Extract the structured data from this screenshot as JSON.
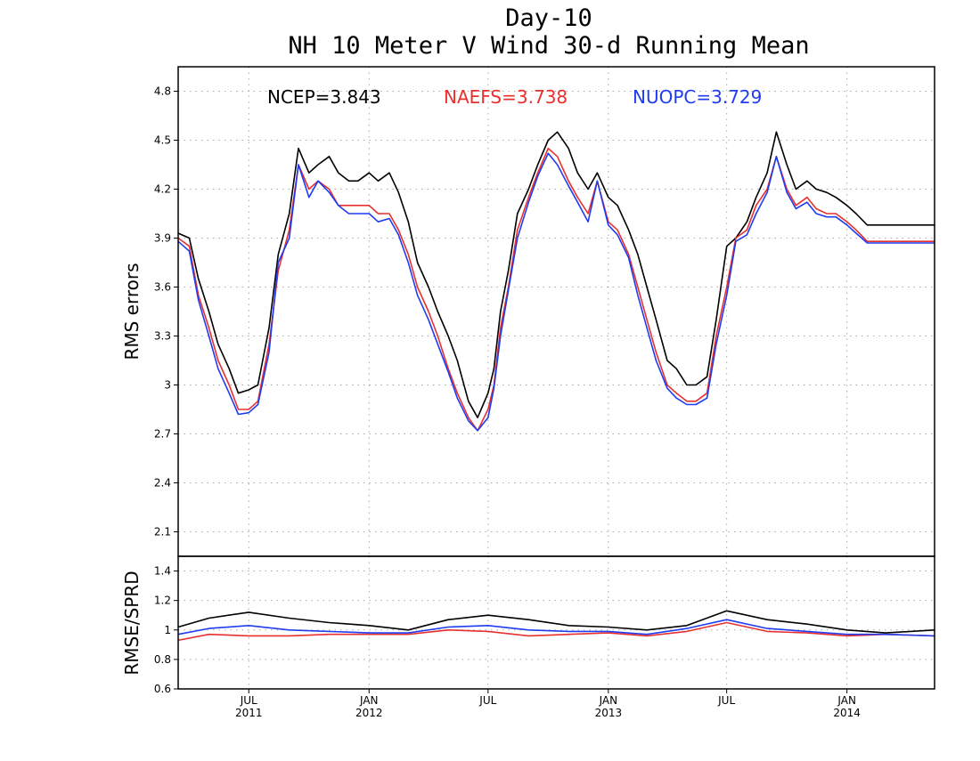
{
  "chart_data": [
    {
      "type": "line",
      "title": "Day-10",
      "subtitle": "NH 10 Meter V Wind 30-d Running Mean",
      "xlabel": "",
      "ylabel": "RMS errors",
      "x_range": [
        "2011-03-15",
        "2014-05-15"
      ],
      "ylim": [
        1.95,
        4.95
      ],
      "yticks": [
        "2.1",
        "2.4",
        "2.7",
        "3",
        "3.3",
        "3.6",
        "3.9",
        "4.2",
        "4.5",
        "4.8"
      ],
      "grid": true,
      "legend": "stats printed across top of plot",
      "stats": [
        {
          "label": "NCEP=3.843",
          "color": "#000000"
        },
        {
          "label": "NAEFS=3.738",
          "color": "#e8302e"
        },
        {
          "label": "NUOPC=3.729",
          "color": "#1f3cf0"
        }
      ],
      "series": [
        {
          "color": "#000000",
          "x": [
            "2011-03-15",
            "2011-04-01",
            "2011-04-15",
            "2011-05-01",
            "2011-05-15",
            "2011-06-01",
            "2011-06-15",
            "2011-07-01",
            "2011-07-15",
            "2011-08-01",
            "2011-08-15",
            "2011-09-01",
            "2011-09-15",
            "2011-10-01",
            "2011-10-15",
            "2011-11-01",
            "2011-11-15",
            "2011-12-01",
            "2011-12-15",
            "2012-01-01",
            "2012-01-15",
            "2012-02-01",
            "2012-02-15",
            "2012-03-01",
            "2012-03-15",
            "2012-04-01",
            "2012-04-15",
            "2012-05-01",
            "2012-05-15",
            "2012-06-01",
            "2012-06-15",
            "2012-07-01",
            "2012-07-10",
            "2012-07-20",
            "2012-08-01",
            "2012-08-15",
            "2012-09-01",
            "2012-09-15",
            "2012-10-01",
            "2012-10-15",
            "2012-11-01",
            "2012-11-15",
            "2012-12-01",
            "2012-12-15",
            "2013-01-01",
            "2013-01-15",
            "2013-02-01",
            "2013-02-15",
            "2013-03-01",
            "2013-03-15",
            "2013-04-01",
            "2013-04-15",
            "2013-05-01",
            "2013-05-15",
            "2013-06-01",
            "2013-06-15",
            "2013-07-01",
            "2013-07-15",
            "2013-08-01",
            "2013-08-15",
            "2013-09-01",
            "2013-09-15",
            "2013-10-01",
            "2013-10-15",
            "2013-11-01",
            "2013-11-15",
            "2013-12-01",
            "2013-12-15",
            "2014-01-01",
            "2014-01-15",
            "2014-02-01",
            "2014-02-15",
            "2014-03-01",
            "2014-03-15",
            "2014-04-01",
            "2014-04-15",
            "2014-05-01",
            "2014-05-15"
          ],
          "values": [
            3.93,
            3.9,
            3.65,
            3.45,
            3.25,
            3.1,
            2.95,
            2.97,
            3.0,
            3.35,
            3.8,
            4.05,
            4.45,
            4.3,
            4.35,
            4.4,
            4.3,
            4.25,
            4.25,
            4.3,
            4.25,
            4.3,
            4.18,
            4.0,
            3.75,
            3.6,
            3.45,
            3.3,
            3.15,
            2.9,
            2.8,
            2.95,
            3.1,
            3.45,
            3.7,
            4.05,
            4.2,
            4.35,
            4.5,
            4.55,
            4.45,
            4.3,
            4.2,
            4.3,
            4.15,
            4.1,
            3.95,
            3.8,
            3.6,
            3.4,
            3.15,
            3.1,
            3.0,
            3.0,
            3.05,
            3.4,
            3.85,
            3.9,
            4.0,
            4.15,
            4.3,
            4.55,
            4.35,
            4.2,
            4.25,
            4.2,
            4.18,
            4.15,
            4.1,
            4.05,
            3.98,
            3.98,
            3.98,
            3.98,
            3.98,
            3.98,
            3.98,
            3.98
          ]
        },
        {
          "color": "#e8302e",
          "x": [
            "2011-03-15",
            "2011-04-01",
            "2011-04-15",
            "2011-05-01",
            "2011-05-15",
            "2011-06-01",
            "2011-06-15",
            "2011-07-01",
            "2011-07-15",
            "2011-08-01",
            "2011-08-15",
            "2011-09-01",
            "2011-09-15",
            "2011-10-01",
            "2011-10-15",
            "2011-11-01",
            "2011-11-15",
            "2011-12-01",
            "2011-12-15",
            "2012-01-01",
            "2012-01-15",
            "2012-02-01",
            "2012-02-15",
            "2012-03-01",
            "2012-03-15",
            "2012-04-01",
            "2012-04-15",
            "2012-05-01",
            "2012-05-15",
            "2012-06-01",
            "2012-06-15",
            "2012-07-01",
            "2012-07-10",
            "2012-07-20",
            "2012-08-01",
            "2012-08-15",
            "2012-09-01",
            "2012-09-15",
            "2012-10-01",
            "2012-10-15",
            "2012-11-01",
            "2012-11-15",
            "2012-12-01",
            "2012-12-15",
            "2013-01-01",
            "2013-01-15",
            "2013-02-01",
            "2013-02-15",
            "2013-03-01",
            "2013-03-15",
            "2013-04-01",
            "2013-04-15",
            "2013-05-01",
            "2013-05-15",
            "2013-06-01",
            "2013-06-15",
            "2013-07-01",
            "2013-07-15",
            "2013-08-01",
            "2013-08-15",
            "2013-09-01",
            "2013-09-15",
            "2013-10-01",
            "2013-10-15",
            "2013-11-01",
            "2013-11-15",
            "2013-12-01",
            "2013-12-15",
            "2014-01-01",
            "2014-01-15",
            "2014-02-01",
            "2014-02-15",
            "2014-03-01",
            "2014-03-15",
            "2014-04-01",
            "2014-04-15",
            "2014-05-01",
            "2014-05-15"
          ],
          "values": [
            3.9,
            3.85,
            3.55,
            3.35,
            3.15,
            3.0,
            2.85,
            2.85,
            2.9,
            3.25,
            3.7,
            3.95,
            4.35,
            4.2,
            4.25,
            4.2,
            4.1,
            4.1,
            4.1,
            4.1,
            4.05,
            4.05,
            3.95,
            3.8,
            3.6,
            3.45,
            3.3,
            3.1,
            2.95,
            2.8,
            2.72,
            2.85,
            3.0,
            3.35,
            3.6,
            3.95,
            4.15,
            4.3,
            4.45,
            4.4,
            4.25,
            4.15,
            4.05,
            4.25,
            4.0,
            3.95,
            3.8,
            3.6,
            3.4,
            3.2,
            3.0,
            2.95,
            2.9,
            2.9,
            2.95,
            3.3,
            3.6,
            3.9,
            3.95,
            4.1,
            4.2,
            4.4,
            4.2,
            4.1,
            4.15,
            4.08,
            4.05,
            4.05,
            4.0,
            3.95,
            3.88,
            3.88,
            3.88,
            3.88,
            3.88,
            3.88,
            3.88,
            3.88
          ]
        },
        {
          "color": "#1f3cf0",
          "x": [
            "2011-03-15",
            "2011-04-01",
            "2011-04-15",
            "2011-05-01",
            "2011-05-15",
            "2011-06-01",
            "2011-06-15",
            "2011-07-01",
            "2011-07-15",
            "2011-08-01",
            "2011-08-15",
            "2011-09-01",
            "2011-09-15",
            "2011-10-01",
            "2011-10-15",
            "2011-11-01",
            "2011-11-15",
            "2011-12-01",
            "2011-12-15",
            "2012-01-01",
            "2012-01-15",
            "2012-02-01",
            "2012-02-15",
            "2012-03-01",
            "2012-03-15",
            "2012-04-01",
            "2012-04-15",
            "2012-05-01",
            "2012-05-15",
            "2012-06-01",
            "2012-06-15",
            "2012-07-01",
            "2012-07-10",
            "2012-07-20",
            "2012-08-01",
            "2012-08-15",
            "2012-09-01",
            "2012-09-15",
            "2012-10-01",
            "2012-10-15",
            "2012-11-01",
            "2012-11-15",
            "2012-12-01",
            "2012-12-15",
            "2013-01-01",
            "2013-01-15",
            "2013-02-01",
            "2013-02-15",
            "2013-03-01",
            "2013-03-15",
            "2013-04-01",
            "2013-04-15",
            "2013-05-01",
            "2013-05-15",
            "2013-06-01",
            "2013-06-15",
            "2013-07-01",
            "2013-07-15",
            "2013-08-01",
            "2013-08-15",
            "2013-09-01",
            "2013-09-15",
            "2013-10-01",
            "2013-10-15",
            "2013-11-01",
            "2013-11-15",
            "2013-12-01",
            "2013-12-15",
            "2014-01-01",
            "2014-01-15",
            "2014-02-01",
            "2014-02-15",
            "2014-03-01",
            "2014-03-15",
            "2014-04-01",
            "2014-04-15",
            "2014-05-01",
            "2014-05-15"
          ],
          "values": [
            3.88,
            3.82,
            3.52,
            3.3,
            3.1,
            2.95,
            2.82,
            2.83,
            2.88,
            3.2,
            3.75,
            3.9,
            4.35,
            4.15,
            4.25,
            4.18,
            4.1,
            4.05,
            4.05,
            4.05,
            4.0,
            4.02,
            3.92,
            3.75,
            3.55,
            3.4,
            3.25,
            3.08,
            2.92,
            2.78,
            2.72,
            2.8,
            2.98,
            3.3,
            3.58,
            3.9,
            4.12,
            4.28,
            4.42,
            4.35,
            4.22,
            4.12,
            4.0,
            4.25,
            3.98,
            3.92,
            3.78,
            3.55,
            3.35,
            3.15,
            2.98,
            2.92,
            2.88,
            2.88,
            2.92,
            3.25,
            3.55,
            3.88,
            3.92,
            4.05,
            4.18,
            4.4,
            4.18,
            4.08,
            4.12,
            4.05,
            4.03,
            4.03,
            3.98,
            3.93,
            3.87,
            3.87,
            3.87,
            3.87,
            3.87,
            3.87,
            3.87,
            3.87
          ]
        }
      ]
    },
    {
      "type": "line",
      "title": "",
      "xlabel": "",
      "ylabel": "RMSE/SPRD",
      "x_range": [
        "2011-03-15",
        "2014-05-15"
      ],
      "ylim": [
        0.6,
        1.5
      ],
      "yticks": [
        "0.6",
        "0.8",
        "1",
        "1.2",
        "1.4"
      ],
      "xticks": [
        {
          "x": "2011-07-01",
          "month": "JUL",
          "year": "2011"
        },
        {
          "x": "2012-01-01",
          "month": "JAN",
          "year": "2012"
        },
        {
          "x": "2012-07-01",
          "month": "JUL",
          "year": ""
        },
        {
          "x": "2013-01-01",
          "month": "JAN",
          "year": "2013"
        },
        {
          "x": "2013-07-01",
          "month": "JUL",
          "year": ""
        },
        {
          "x": "2014-01-01",
          "month": "JAN",
          "year": "2014"
        }
      ],
      "grid": true,
      "series": [
        {
          "color": "#000000",
          "x": [
            "2011-03-15",
            "2011-05-01",
            "2011-07-01",
            "2011-09-01",
            "2011-11-01",
            "2012-01-01",
            "2012-03-01",
            "2012-05-01",
            "2012-07-01",
            "2012-09-01",
            "2012-11-01",
            "2013-01-01",
            "2013-03-01",
            "2013-05-01",
            "2013-07-01",
            "2013-09-01",
            "2013-11-01",
            "2014-01-01",
            "2014-03-01",
            "2014-05-15"
          ],
          "values": [
            1.02,
            1.08,
            1.12,
            1.08,
            1.05,
            1.03,
            1.0,
            1.07,
            1.1,
            1.07,
            1.03,
            1.02,
            1.0,
            1.03,
            1.13,
            1.07,
            1.04,
            1.0,
            0.98,
            1.0
          ]
        },
        {
          "color": "#e8302e",
          "x": [
            "2011-03-15",
            "2011-05-01",
            "2011-07-01",
            "2011-09-01",
            "2011-11-01",
            "2012-01-01",
            "2012-03-01",
            "2012-05-01",
            "2012-07-01",
            "2012-09-01",
            "2012-11-01",
            "2013-01-01",
            "2013-03-01",
            "2013-05-01",
            "2013-07-01",
            "2013-09-01",
            "2013-11-01",
            "2014-01-01",
            "2014-03-01",
            "2014-05-15"
          ],
          "values": [
            0.93,
            0.97,
            0.96,
            0.96,
            0.97,
            0.97,
            0.97,
            1.0,
            0.99,
            0.96,
            0.97,
            0.98,
            0.96,
            0.99,
            1.05,
            0.99,
            0.98,
            0.96,
            0.97,
            0.96
          ]
        },
        {
          "color": "#1f3cf0",
          "x": [
            "2011-03-15",
            "2011-05-01",
            "2011-07-01",
            "2011-09-01",
            "2011-11-01",
            "2012-01-01",
            "2012-03-01",
            "2012-05-01",
            "2012-07-01",
            "2012-09-01",
            "2012-11-01",
            "2013-01-01",
            "2013-03-01",
            "2013-05-01",
            "2013-07-01",
            "2013-09-01",
            "2013-11-01",
            "2014-01-01",
            "2014-03-01",
            "2014-05-15"
          ],
          "values": [
            0.97,
            1.01,
            1.03,
            1.0,
            0.99,
            0.98,
            0.98,
            1.02,
            1.03,
            1.0,
            0.99,
            0.99,
            0.97,
            1.01,
            1.07,
            1.01,
            0.99,
            0.97,
            0.97,
            0.96
          ]
        }
      ]
    }
  ]
}
